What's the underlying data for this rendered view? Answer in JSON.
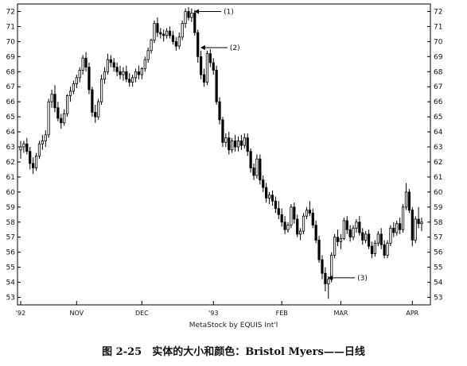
{
  "chart_data": {
    "type": "candlestick",
    "title": "",
    "xlabel": "",
    "ylabel": "",
    "ylim": [
      52.5,
      72.5
    ],
    "y_ticks": [
      53,
      54,
      55,
      56,
      57,
      58,
      59,
      60,
      61,
      62,
      63,
      64,
      65,
      66,
      67,
      68,
      69,
      70,
      71,
      72
    ],
    "x_ticks": [
      {
        "label": "'92",
        "index": 0
      },
      {
        "label": "NOV",
        "index": 18
      },
      {
        "label": "DEC",
        "index": 39
      },
      {
        "label": "'93",
        "index": 62
      },
      {
        "label": "FEB",
        "index": 84
      },
      {
        "label": "MAR",
        "index": 103
      },
      {
        "label": "APR",
        "index": 126
      }
    ],
    "grid": false,
    "series": [
      {
        "type": "candlestick",
        "values": [
          [
            62.8,
            63.4,
            62.2,
            63.0
          ],
          [
            63.0,
            63.4,
            62.6,
            63.2
          ],
          [
            63.2,
            63.6,
            62.5,
            62.7
          ],
          [
            62.7,
            63.0,
            61.5,
            61.9
          ],
          [
            61.9,
            62.3,
            61.2,
            61.6
          ],
          [
            61.6,
            62.6,
            61.4,
            62.4
          ],
          [
            62.4,
            63.4,
            62.2,
            63.2
          ],
          [
            63.2,
            63.8,
            62.8,
            63.4
          ],
          [
            63.4,
            64.1,
            63.0,
            63.8
          ],
          [
            63.8,
            66.2,
            63.6,
            66.0
          ],
          [
            66.0,
            66.8,
            65.6,
            66.5
          ],
          [
            66.5,
            67.1,
            65.3,
            65.6
          ],
          [
            65.6,
            66.0,
            64.7,
            64.9
          ],
          [
            64.9,
            65.2,
            64.2,
            64.6
          ],
          [
            64.6,
            65.5,
            64.4,
            65.2
          ],
          [
            65.2,
            66.5,
            65.0,
            66.4
          ],
          [
            66.4,
            67.0,
            66.0,
            66.7
          ],
          [
            66.7,
            67.4,
            66.5,
            67.2
          ],
          [
            67.2,
            67.8,
            66.9,
            67.6
          ],
          [
            67.6,
            68.3,
            67.3,
            68.1
          ],
          [
            68.1,
            69.1,
            67.8,
            68.9
          ],
          [
            68.9,
            69.3,
            68.0,
            68.3
          ],
          [
            68.3,
            68.6,
            66.5,
            66.8
          ],
          [
            66.8,
            67.0,
            65.0,
            65.3
          ],
          [
            65.3,
            65.8,
            64.6,
            65.0
          ],
          [
            65.0,
            66.2,
            64.8,
            66.0
          ],
          [
            66.0,
            67.8,
            65.8,
            67.5
          ],
          [
            67.5,
            68.3,
            67.2,
            68.0
          ],
          [
            68.0,
            69.2,
            67.8,
            68.8
          ],
          [
            68.8,
            69.1,
            68.3,
            68.6
          ],
          [
            68.6,
            68.9,
            68.0,
            68.3
          ],
          [
            68.3,
            68.6,
            67.7,
            68.0
          ],
          [
            68.0,
            68.4,
            67.5,
            67.8
          ],
          [
            67.8,
            68.3,
            67.4,
            68.0
          ],
          [
            68.0,
            68.4,
            67.3,
            67.5
          ],
          [
            67.5,
            67.9,
            67.0,
            67.3
          ],
          [
            67.3,
            67.8,
            67.0,
            67.6
          ],
          [
            67.6,
            68.2,
            67.3,
            68.0
          ],
          [
            68.0,
            68.4,
            67.5,
            67.8
          ],
          [
            67.8,
            68.3,
            67.5,
            68.2
          ],
          [
            68.2,
            69.0,
            68.0,
            68.8
          ],
          [
            68.8,
            69.6,
            68.6,
            69.4
          ],
          [
            69.4,
            70.2,
            69.2,
            70.1
          ],
          [
            70.1,
            71.4,
            69.9,
            71.2
          ],
          [
            71.2,
            71.6,
            70.3,
            70.6
          ],
          [
            70.6,
            70.9,
            70.2,
            70.5
          ],
          [
            70.5,
            70.8,
            70.0,
            70.4
          ],
          [
            70.4,
            70.9,
            70.2,
            70.7
          ],
          [
            70.7,
            71.0,
            70.2,
            70.4
          ],
          [
            70.4,
            70.7,
            69.8,
            70.0
          ],
          [
            70.0,
            70.3,
            69.4,
            69.7
          ],
          [
            69.7,
            70.6,
            69.5,
            70.3
          ],
          [
            70.3,
            71.4,
            70.1,
            71.2
          ],
          [
            71.2,
            72.2,
            70.9,
            72.0
          ],
          [
            72.0,
            72.3,
            71.4,
            71.6
          ],
          [
            71.6,
            72.2,
            71.3,
            71.9
          ],
          [
            71.9,
            72.1,
            70.4,
            70.6
          ],
          [
            70.6,
            70.8,
            68.6,
            69.0
          ],
          [
            69.0,
            69.4,
            67.5,
            67.8
          ],
          [
            67.8,
            68.2,
            67.0,
            67.3
          ],
          [
            67.3,
            69.4,
            67.1,
            69.2
          ],
          [
            69.2,
            69.5,
            68.3,
            68.6
          ],
          [
            68.6,
            68.9,
            67.8,
            68.1
          ],
          [
            68.1,
            68.4,
            65.8,
            66.0
          ],
          [
            66.0,
            66.3,
            64.5,
            64.8
          ],
          [
            64.8,
            65.0,
            63.0,
            63.3
          ],
          [
            63.3,
            63.9,
            63.0,
            63.6
          ],
          [
            63.6,
            64.0,
            62.5,
            62.8
          ],
          [
            62.8,
            63.6,
            62.6,
            63.4
          ],
          [
            63.4,
            63.8,
            62.7,
            63.0
          ],
          [
            63.0,
            63.7,
            62.7,
            63.4
          ],
          [
            63.4,
            63.8,
            62.8,
            63.1
          ],
          [
            63.1,
            63.9,
            62.9,
            63.6
          ],
          [
            63.6,
            63.9,
            62.4,
            62.7
          ],
          [
            62.7,
            62.9,
            61.3,
            61.6
          ],
          [
            61.6,
            61.9,
            60.8,
            61.1
          ],
          [
            61.1,
            62.5,
            60.9,
            62.2
          ],
          [
            62.2,
            62.5,
            60.5,
            60.8
          ],
          [
            60.8,
            61.1,
            60.0,
            60.3
          ],
          [
            60.3,
            60.6,
            59.3,
            59.6
          ],
          [
            59.6,
            60.0,
            59.2,
            59.8
          ],
          [
            59.8,
            60.1,
            59.1,
            59.4
          ],
          [
            59.4,
            59.7,
            58.6,
            58.9
          ],
          [
            58.9,
            59.4,
            58.2,
            58.5
          ],
          [
            58.5,
            58.9,
            57.7,
            58.0
          ],
          [
            58.0,
            58.4,
            57.2,
            57.5
          ],
          [
            57.5,
            58.0,
            57.3,
            57.8
          ],
          [
            57.8,
            59.2,
            57.6,
            59.0
          ],
          [
            59.0,
            59.3,
            57.9,
            58.2
          ],
          [
            58.2,
            58.5,
            57.0,
            57.2
          ],
          [
            57.2,
            57.6,
            56.8,
            57.4
          ],
          [
            57.4,
            58.6,
            57.2,
            58.4
          ],
          [
            58.4,
            59.0,
            58.2,
            58.8
          ],
          [
            58.8,
            59.4,
            58.4,
            58.6
          ],
          [
            58.6,
            58.9,
            57.6,
            57.8
          ],
          [
            57.8,
            58.1,
            56.6,
            56.8
          ],
          [
            56.8,
            57.1,
            55.3,
            55.5
          ],
          [
            55.5,
            55.8,
            54.2,
            54.6
          ],
          [
            54.6,
            55.0,
            53.4,
            53.9
          ],
          [
            53.9,
            54.4,
            52.9,
            54.2
          ],
          [
            54.2,
            56.0,
            54.0,
            55.8
          ],
          [
            55.8,
            57.2,
            55.6,
            57.0
          ],
          [
            57.0,
            57.5,
            56.4,
            56.7
          ],
          [
            56.7,
            57.2,
            56.2,
            56.9
          ],
          [
            56.9,
            58.3,
            56.8,
            58.1
          ],
          [
            58.1,
            58.4,
            57.2,
            57.5
          ],
          [
            57.5,
            57.8,
            56.7,
            57.0
          ],
          [
            57.0,
            57.8,
            56.8,
            57.6
          ],
          [
            57.6,
            58.2,
            57.3,
            58.0
          ],
          [
            58.0,
            58.4,
            57.1,
            57.3
          ],
          [
            57.3,
            57.6,
            56.5,
            56.8
          ],
          [
            56.8,
            57.4,
            56.6,
            57.2
          ],
          [
            57.2,
            57.5,
            56.2,
            56.4
          ],
          [
            56.4,
            56.7,
            55.6,
            55.9
          ],
          [
            55.9,
            56.8,
            55.7,
            56.6
          ],
          [
            56.6,
            57.4,
            56.4,
            57.2
          ],
          [
            57.2,
            57.6,
            56.2,
            56.5
          ],
          [
            56.5,
            56.8,
            55.6,
            55.8
          ],
          [
            55.8,
            56.8,
            55.6,
            56.6
          ],
          [
            56.6,
            57.8,
            56.4,
            57.6
          ],
          [
            57.6,
            58.0,
            57.0,
            57.3
          ],
          [
            57.3,
            58.1,
            57.1,
            57.9
          ],
          [
            57.9,
            58.3,
            57.2,
            57.5
          ],
          [
            57.5,
            59.2,
            57.3,
            59.0
          ],
          [
            59.0,
            60.6,
            58.8,
            60.0
          ],
          [
            60.0,
            60.2,
            58.6,
            58.8
          ],
          [
            58.8,
            59.0,
            56.4,
            56.8
          ],
          [
            56.8,
            58.4,
            56.6,
            58.2
          ],
          [
            58.2,
            59.0,
            57.6,
            57.9
          ],
          [
            57.9,
            58.3,
            57.4,
            58.0
          ]
        ]
      }
    ],
    "annotations": [
      {
        "label": "(1)",
        "index": 55,
        "price": 72.0
      },
      {
        "label": "(2)",
        "index": 57,
        "price": 69.6
      },
      {
        "label": "(3)",
        "index": 98,
        "price": 54.3
      }
    ],
    "credit": "MetaStock by EQUIS Int'l"
  },
  "caption": "图 2-25　实体的大小和颜色：Bristol Myers——日线"
}
